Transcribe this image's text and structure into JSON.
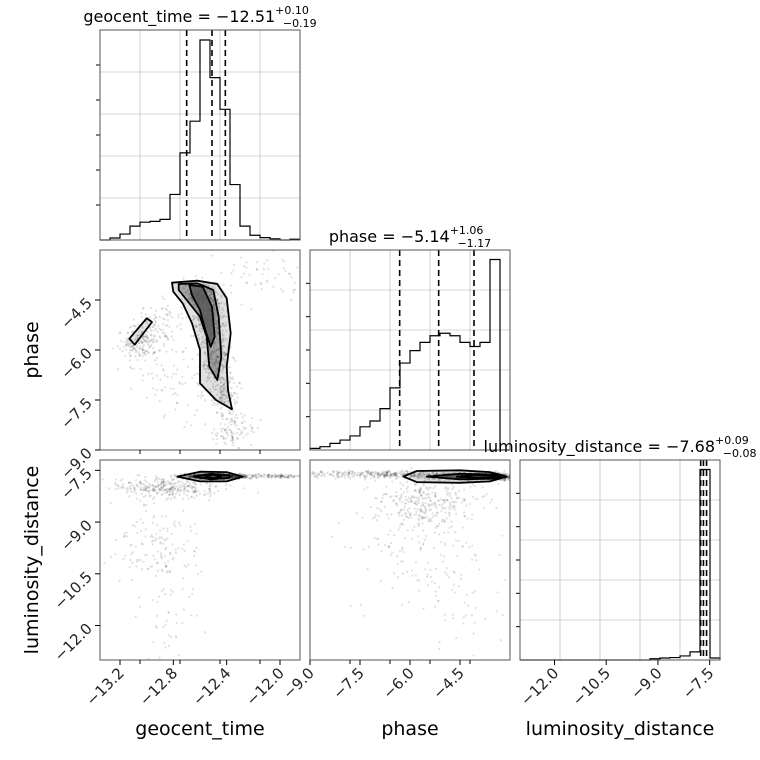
{
  "chart_data": [
    {
      "type": "histogram",
      "panel": "diag-geocent_time",
      "parameter": "geocent_time",
      "title": {
        "name": "geocent_time",
        "median": "−12.51",
        "plus": "+0.10",
        "minus": "−0.19"
      },
      "xlim": [
        -13.35,
        -11.85
      ],
      "bins": [
        -13.35,
        -13.275,
        -13.2,
        -13.125,
        -13.05,
        -12.975,
        -12.9,
        -12.825,
        -12.75,
        -12.675,
        -12.6,
        -12.525,
        -12.45,
        -12.375,
        -12.3,
        -12.225,
        -12.15,
        -12.075,
        -12.0,
        -11.925,
        -11.85
      ],
      "counts": [
        0,
        0.5,
        1.5,
        3.5,
        4.5,
        4.7,
        5.2,
        11.5,
        22.0,
        30.0,
        50.5,
        41.0,
        33.0,
        14.0,
        3.5,
        1.2,
        0.6,
        0.3,
        0,
        0.2
      ],
      "quantiles": [
        -12.7,
        -12.51,
        -12.41
      ],
      "grid": true
    },
    {
      "type": "scatter+contour",
      "panel": "geocent_time-vs-phase",
      "x_parameter": "geocent_time",
      "y_parameter": "phase",
      "xlim": [
        -13.35,
        -11.85
      ],
      "ylim": [
        -9.0,
        -3.0
      ],
      "yticks": [
        "−4.5",
        "−6.0",
        "−7.5",
        "−9.0"
      ],
      "ytick_values": [
        -4.5,
        -6.0,
        -7.5,
        -9.0
      ],
      "clusters": [
        {
          "cx": -12.6,
          "cy": -4.35,
          "sx": 0.06,
          "sy": 0.17,
          "n": 420
        },
        {
          "cx": -12.53,
          "cy": -5.0,
          "sx": 0.05,
          "sy": 0.35,
          "n": 500
        },
        {
          "cx": -12.48,
          "cy": -6.2,
          "sx": 0.05,
          "sy": 0.45,
          "n": 300
        },
        {
          "cx": -12.42,
          "cy": -7.2,
          "sx": 0.05,
          "sy": 0.35,
          "n": 140
        },
        {
          "cx": -13.05,
          "cy": -5.8,
          "sx": 0.08,
          "sy": 0.25,
          "n": 170
        },
        {
          "cx": -12.9,
          "cy": -5.2,
          "sx": 0.09,
          "sy": 0.3,
          "n": 90
        },
        {
          "cx": -12.35,
          "cy": -8.4,
          "sx": 0.08,
          "sy": 0.25,
          "n": 100
        },
        {
          "cx": -12.0,
          "cy": -3.8,
          "sx": 0.22,
          "sy": 0.4,
          "n": 70
        },
        {
          "cx": -12.8,
          "cy": -6.8,
          "sx": 0.15,
          "sy": 0.7,
          "n": 90
        }
      ],
      "contours": [
        {
          "level": "outer",
          "points": [
            [
              -12.81,
              -3.98
            ],
            [
              -12.62,
              -3.92
            ],
            [
              -12.47,
              -4.02
            ],
            [
              -12.4,
              -4.45
            ],
            [
              -12.37,
              -5.5
            ],
            [
              -12.4,
              -6.5
            ],
            [
              -12.39,
              -7.2
            ],
            [
              -12.36,
              -7.78
            ],
            [
              -12.48,
              -7.5
            ],
            [
              -12.6,
              -7.0
            ],
            [
              -12.6,
              -6.0
            ],
            [
              -12.66,
              -5.2
            ],
            [
              -12.73,
              -4.6
            ],
            [
              -12.8,
              -4.25
            ]
          ]
        },
        {
          "level": "middle",
          "points": [
            [
              -12.76,
              -4.02
            ],
            [
              -12.62,
              -4.0
            ],
            [
              -12.5,
              -4.2
            ],
            [
              -12.46,
              -5.0
            ],
            [
              -12.44,
              -6.2
            ],
            [
              -12.47,
              -6.9
            ],
            [
              -12.53,
              -6.5
            ],
            [
              -12.55,
              -5.6
            ],
            [
              -12.6,
              -5.0
            ],
            [
              -12.7,
              -4.5
            ],
            [
              -12.76,
              -4.2
            ]
          ]
        },
        {
          "level": "inner",
          "points": [
            [
              -12.68,
              -4.05
            ],
            [
              -12.58,
              -4.1
            ],
            [
              -12.51,
              -4.7
            ],
            [
              -12.49,
              -5.6
            ],
            [
              -12.52,
              -5.9
            ],
            [
              -12.56,
              -5.4
            ],
            [
              -12.6,
              -4.8
            ],
            [
              -12.66,
              -4.35
            ]
          ]
        },
        {
          "level": "island",
          "points": [
            [
              -13.13,
              -5.66
            ],
            [
              -13.0,
              -5.05
            ],
            [
              -12.96,
              -5.16
            ],
            [
              -13.09,
              -5.84
            ]
          ]
        }
      ]
    },
    {
      "type": "histogram",
      "panel": "diag-phase",
      "parameter": "phase",
      "title": {
        "name": "phase",
        "median": "−5.14",
        "plus": "+1.06",
        "minus": "−1.17"
      },
      "xlim": [
        -9.0,
        -3.0
      ],
      "bins": [
        -9.0,
        -8.7,
        -8.4,
        -8.1,
        -7.8,
        -7.5,
        -7.2,
        -6.9,
        -6.6,
        -6.3,
        -6.0,
        -5.7,
        -5.4,
        -5.1,
        -4.8,
        -4.5,
        -4.2,
        -3.9,
        -3.6,
        -3.3,
        -3.0
      ],
      "counts": [
        0.2,
        0.4,
        0.8,
        1.2,
        1.7,
        2.8,
        3.5,
        5.0,
        7.5,
        10.5,
        12.0,
        13.0,
        13.8,
        14.1,
        13.8,
        13.0,
        12.5,
        13.0,
        23.0,
        0
      ],
      "quantiles": [
        -6.31,
        -5.14,
        -4.08
      ],
      "grid": true
    },
    {
      "type": "scatter+contour",
      "panel": "geocent_time-vs-luminosity_distance",
      "x_parameter": "geocent_time",
      "y_parameter": "luminosity_distance",
      "xlim": [
        -13.35,
        -11.85
      ],
      "ylim": [
        -13.0,
        -7.2
      ],
      "xticks": [
        "−13.2",
        "−12.8",
        "−12.4",
        "−12.0"
      ],
      "xtick_values": [
        -13.2,
        -12.8,
        -12.4,
        -12.0
      ],
      "yticks": [
        "−7.5",
        "−9.0",
        "−10.5",
        "−12.0"
      ],
      "ytick_values": [
        -7.5,
        -9.0,
        -10.5,
        -12.0
      ],
      "clusters": [
        {
          "cx": -12.5,
          "cy": -7.68,
          "sx": 0.1,
          "sy": 0.04,
          "n": 1100
        },
        {
          "cx": -12.85,
          "cy": -8.0,
          "sx": 0.2,
          "sy": 0.15,
          "n": 300
        },
        {
          "cx": -12.1,
          "cy": -7.67,
          "sx": 0.25,
          "sy": 0.03,
          "n": 200
        },
        {
          "cx": -12.95,
          "cy": -9.6,
          "sx": 0.15,
          "sy": 0.6,
          "n": 120
        },
        {
          "cx": -12.8,
          "cy": -11.2,
          "sx": 0.12,
          "sy": 0.9,
          "n": 60
        }
      ],
      "contours": [
        {
          "level": "outer",
          "points": [
            [
              -12.77,
              -7.68
            ],
            [
              -12.6,
              -7.54
            ],
            [
              -12.4,
              -7.55
            ],
            [
              -12.28,
              -7.68
            ],
            [
              -12.4,
              -7.82
            ],
            [
              -12.6,
              -7.82
            ]
          ]
        },
        {
          "level": "middle",
          "points": [
            [
              -12.65,
              -7.68
            ],
            [
              -12.52,
              -7.6
            ],
            [
              -12.38,
              -7.64
            ],
            [
              -12.38,
              -7.72
            ],
            [
              -12.52,
              -7.76
            ]
          ]
        },
        {
          "level": "inner",
          "points": [
            [
              -12.56,
              -7.68
            ],
            [
              -12.5,
              -7.63
            ],
            [
              -12.44,
              -7.68
            ],
            [
              -12.5,
              -7.73
            ]
          ]
        }
      ]
    },
    {
      "type": "scatter+contour",
      "panel": "phase-vs-luminosity_distance",
      "x_parameter": "phase",
      "y_parameter": "luminosity_distance",
      "xlim": [
        -9.0,
        -3.0
      ],
      "ylim": [
        -13.0,
        -7.2
      ],
      "xticks": [
        "−9.0",
        "−7.5",
        "−6.0",
        "−4.5"
      ],
      "xtick_values": [
        -9.0,
        -7.5,
        -6.0,
        -4.5
      ],
      "clusters": [
        {
          "cx": -4.0,
          "cy": -7.68,
          "sx": 0.7,
          "sy": 0.05,
          "n": 1100
        },
        {
          "cx": -6.5,
          "cy": -7.62,
          "sx": 1.5,
          "sy": 0.05,
          "n": 400
        },
        {
          "cx": -5.5,
          "cy": -8.4,
          "sx": 0.8,
          "sy": 0.35,
          "n": 300
        },
        {
          "cx": -5.7,
          "cy": -9.5,
          "sx": 1.0,
          "sy": 0.8,
          "n": 120
        },
        {
          "cx": -4.5,
          "cy": -11.0,
          "sx": 0.7,
          "sy": 1.0,
          "n": 60
        }
      ],
      "contours": [
        {
          "level": "outer",
          "points": [
            [
              -6.2,
              -7.68
            ],
            [
              -5.8,
              -7.52
            ],
            [
              -4.5,
              -7.5
            ],
            [
              -3.6,
              -7.55
            ],
            [
              -3.1,
              -7.68
            ],
            [
              -3.6,
              -7.82
            ],
            [
              -4.5,
              -7.86
            ],
            [
              -5.8,
              -7.84
            ]
          ]
        },
        {
          "level": "middle",
          "points": [
            [
              -5.5,
              -7.68
            ],
            [
              -4.5,
              -7.6
            ],
            [
              -3.4,
              -7.62
            ],
            [
              -3.25,
              -7.68
            ],
            [
              -3.4,
              -7.74
            ],
            [
              -4.5,
              -7.76
            ]
          ]
        },
        {
          "level": "inner",
          "points": [
            [
              -4.6,
              -7.68
            ],
            [
              -4.0,
              -7.64
            ],
            [
              -3.35,
              -7.66
            ],
            [
              -3.35,
              -7.7
            ],
            [
              -4.0,
              -7.72
            ]
          ]
        }
      ]
    },
    {
      "type": "histogram",
      "panel": "diag-luminosity_distance",
      "parameter": "luminosity_distance",
      "title": {
        "name": "luminosity_distance",
        "median": "−7.68",
        "plus": "+0.09",
        "minus": "−0.08"
      },
      "xlim": [
        -13.0,
        -7.2
      ],
      "xticks": [
        "−12.0",
        "−10.5",
        "−9.0",
        "−7.5"
      ],
      "xtick_values": [
        -12.0,
        -10.5,
        -9.0,
        -7.5
      ],
      "bins": [
        -13.0,
        -12.71,
        -12.42,
        -12.13,
        -11.84,
        -11.55,
        -11.26,
        -10.97,
        -10.68,
        -10.39,
        -10.1,
        -9.81,
        -9.52,
        -9.23,
        -8.94,
        -8.65,
        -8.36,
        -8.07,
        -7.78,
        -7.49,
        -7.2
      ],
      "counts": [
        0,
        0,
        0,
        0,
        0,
        0,
        0,
        0,
        0,
        0,
        0,
        0,
        0,
        0.3,
        0.5,
        0.6,
        1.0,
        2.0,
        47.0,
        0.5
      ],
      "quantiles": [
        -7.76,
        -7.68,
        -7.59
      ],
      "grid": true
    }
  ],
  "axes": {
    "xlabels": [
      "geocent_time",
      "phase",
      "luminosity_distance"
    ],
    "ylabels": [
      "phase",
      "luminosity_distance"
    ]
  },
  "colors": {
    "line": "#000000",
    "grid": "#b0b0b0",
    "points": "#000000",
    "fill": "#5a5a5a"
  }
}
